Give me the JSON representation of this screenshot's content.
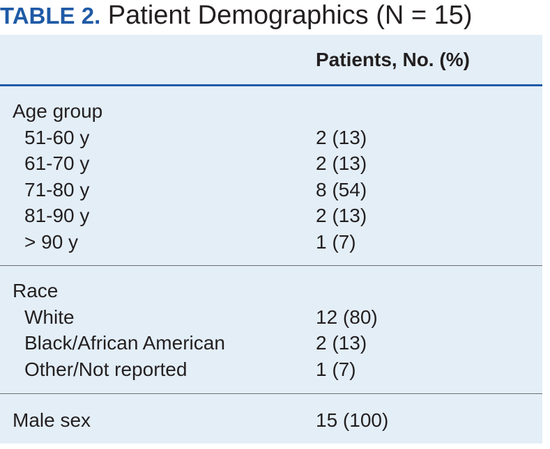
{
  "title": {
    "label": "TABLE 2",
    "separator": ".",
    "text": " Patient Demographics (N = 15)"
  },
  "table": {
    "column_header": "Patients, No. (%)",
    "sections": [
      {
        "heading": "Age group",
        "rows": [
          {
            "label": "51-60 y",
            "value": "2 (13)"
          },
          {
            "label": "61-70 y",
            "value": "2 (13)"
          },
          {
            "label": "71-80 y",
            "value": "8 (54)"
          },
          {
            "label": "81-90 y",
            "value": "2 (13)"
          },
          {
            "label": "> 90 y",
            "value": "1 (7)"
          }
        ]
      },
      {
        "heading": "Race",
        "rows": [
          {
            "label": "White",
            "value": "12 (80)"
          },
          {
            "label": "Black/African American",
            "value": "2 (13)"
          },
          {
            "label": "Other/Not reported",
            "value": "1 (7)"
          }
        ]
      },
      {
        "heading": "Male sex",
        "heading_value": "15 (100)",
        "rows": []
      }
    ]
  },
  "colors": {
    "accent": "#1f5aa6",
    "panel_background": "#e3eef7",
    "divider": "#6d6e71",
    "text": "#231f20"
  }
}
